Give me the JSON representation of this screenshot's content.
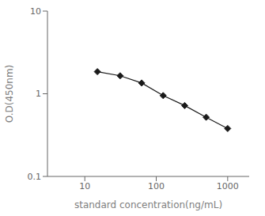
{
  "chart_data": {
    "type": "line",
    "x": [
      15,
      31.25,
      62.5,
      125,
      250,
      500,
      1000
    ],
    "values": [
      1.85,
      1.65,
      1.35,
      0.95,
      0.72,
      0.52,
      0.38
    ],
    "xlabel": "standard concentration(ng/mL)",
    "ylabel": "O.D(450nm)",
    "xlim": [
      3,
      2000
    ],
    "ylim": [
      0.1,
      10
    ],
    "xticks": [
      10,
      100,
      1000
    ],
    "yticks": [
      0.1,
      1,
      10
    ],
    "log": true,
    "color": "#1a1a1a",
    "marker": "diamond"
  }
}
